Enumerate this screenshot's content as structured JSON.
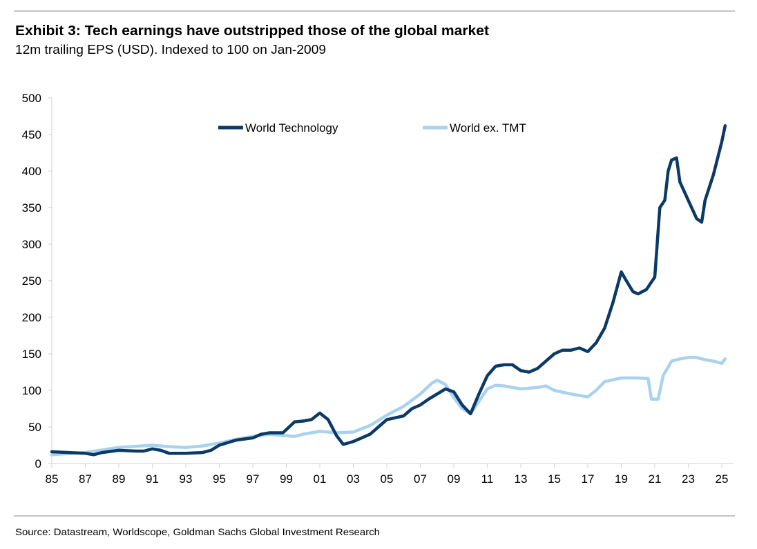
{
  "chart_data": {
    "type": "line",
    "title": "Exhibit 3: Tech earnings have outstripped those of the global market",
    "subtitle": "12m trailing EPS (USD). Indexed to 100 on Jan-2009",
    "source": "Source: Datastream, Worldscope, Goldman Sachs Global Investment Research",
    "xlabel": "",
    "ylabel": "",
    "ylim": [
      0,
      500
    ],
    "xlim": [
      1985,
      2025.6
    ],
    "yticks": [
      "0",
      "50",
      "100",
      "150",
      "200",
      "250",
      "300",
      "350",
      "400",
      "450",
      "500"
    ],
    "xticks": [
      "85",
      "87",
      "89",
      "91",
      "93",
      "95",
      "97",
      "99",
      "01",
      "03",
      "05",
      "07",
      "09",
      "11",
      "13",
      "15",
      "17",
      "19",
      "21",
      "23",
      "25"
    ],
    "grid": false,
    "legend_position": "top-center",
    "series": [
      {
        "name": "World Technology",
        "color": "#0b3a66",
        "x": [
          1985,
          1986,
          1987,
          1987.5,
          1988,
          1989,
          1990,
          1990.5,
          1991,
          1991.5,
          1992,
          1993,
          1994,
          1994.5,
          1995,
          1996,
          1997,
          1997.5,
          1998,
          1998.8,
          1999.5,
          2000,
          2000.5,
          2001,
          2001.5,
          2002,
          2002.4,
          2003,
          2003.5,
          2004,
          2004.5,
          2005,
          2006,
          2006.5,
          2007,
          2007.5,
          2008,
          2008.5,
          2009,
          2009.5,
          2010,
          2010.5,
          2011,
          2011.5,
          2012,
          2012.5,
          2013,
          2013.5,
          2014,
          2014.5,
          2015,
          2015.5,
          2016,
          2016.5,
          2017,
          2017.5,
          2018,
          2018.5,
          2019,
          2019.3,
          2019.7,
          2020,
          2020.5,
          2021,
          2021.3,
          2021.6,
          2021.8,
          2022,
          2022.3,
          2022.5,
          2023,
          2023.5,
          2023.8,
          2024,
          2024.5,
          2025,
          2025.2
        ],
        "values": [
          16,
          15,
          14,
          12,
          15,
          18,
          17,
          17,
          20,
          18,
          14,
          14,
          15,
          18,
          25,
          32,
          35,
          40,
          42,
          42,
          57,
          58,
          60,
          69,
          60,
          38,
          26,
          30,
          35,
          40,
          50,
          60,
          65,
          75,
          80,
          88,
          95,
          102,
          98,
          80,
          68,
          95,
          120,
          133,
          135,
          135,
          127,
          125,
          130,
          140,
          150,
          155,
          155,
          158,
          153,
          165,
          185,
          220,
          262,
          250,
          235,
          232,
          238,
          255,
          350,
          360,
          400,
          415,
          418,
          385,
          360,
          335,
          330,
          360,
          395,
          440,
          462
        ]
      },
      {
        "name": "World ex. TMT",
        "color": "#a9d2f0",
        "x": [
          1985,
          1987,
          1989,
          1991,
          1992,
          1993,
          1994,
          1995,
          1996,
          1997,
          1998,
          1999,
          1999.5,
          2000,
          2001,
          2002,
          2003,
          2004,
          2005,
          2006,
          2007,
          2007.7,
          2008,
          2008.5,
          2009,
          2009.5,
          2010,
          2010.5,
          2011,
          2011.5,
          2012,
          2013,
          2014,
          2014.5,
          2015,
          2016,
          2017,
          2017.5,
          2018,
          2019,
          2020,
          2020.6,
          2020.8,
          2021.2,
          2021.5,
          2022,
          2022.5,
          2023,
          2023.5,
          2024,
          2024.5,
          2025,
          2025.2
        ],
        "values": [
          12,
          15,
          22,
          25,
          23,
          22,
          24,
          28,
          33,
          37,
          40,
          38,
          37,
          40,
          44,
          42,
          43,
          52,
          66,
          78,
          95,
          110,
          114,
          108,
          90,
          75,
          68,
          85,
          102,
          107,
          106,
          102,
          104,
          106,
          100,
          95,
          91,
          100,
          112,
          117,
          117,
          116,
          88,
          88,
          120,
          140,
          143,
          145,
          145,
          142,
          140,
          137,
          143
        ]
      }
    ]
  }
}
